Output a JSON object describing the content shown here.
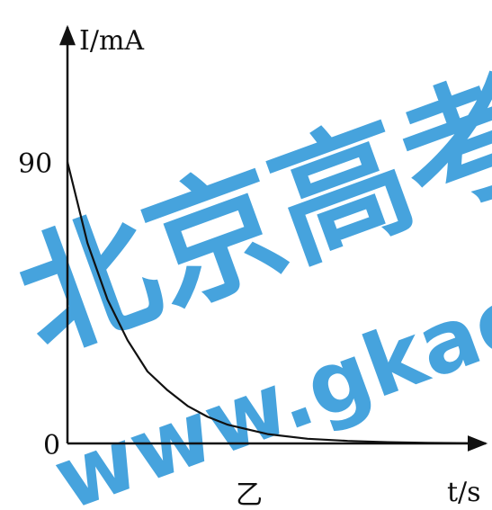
{
  "chart_data": {
    "type": "line",
    "title": "",
    "xlabel": "t/s",
    "ylabel": "I/mA",
    "caption": "乙",
    "y_ticks": [
      {
        "value": 0,
        "label": "0"
      },
      {
        "value": 90,
        "label": "90"
      }
    ],
    "xlim": [
      0,
      10
    ],
    "ylim": [
      0,
      140
    ],
    "grid": false,
    "legend": "none",
    "series": [
      {
        "color": "#111111",
        "curve": "exponential-decay",
        "x": [
          0,
          0.5,
          1,
          1.5,
          2,
          2.5,
          3,
          3.5,
          4,
          5,
          6,
          7,
          8,
          9,
          10
        ],
        "y": [
          90,
          64,
          46,
          33,
          23,
          17,
          12,
          8.5,
          6,
          3,
          1.5,
          0.8,
          0.4,
          0.2,
          0.1
        ]
      }
    ]
  },
  "watermark": {
    "text_cn": "北京高考",
    "text_url": "www.gkao.",
    "color": "#1e8fd6"
  }
}
